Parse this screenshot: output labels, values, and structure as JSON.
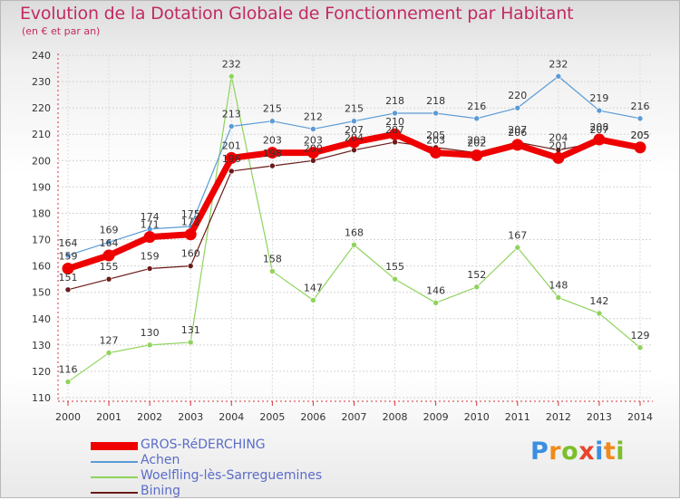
{
  "title": "Evolution de la Dotation Globale de Fonctionnement par Habitant",
  "subtitle": "(en € et par an)",
  "logo": {
    "letters": [
      {
        "ch": "P",
        "color": "#3b8ee0"
      },
      {
        "ch": "r",
        "color": "#f08a1a"
      },
      {
        "ch": "o",
        "color": "#7bbf2a"
      },
      {
        "ch": "x",
        "color": "#e8442c"
      },
      {
        "ch": "i",
        "color": "#3b8ee0"
      },
      {
        "ch": "t",
        "color": "#f08a1a"
      },
      {
        "ch": "i",
        "color": "#7bbf2a"
      }
    ]
  },
  "chart_data": {
    "type": "line",
    "title": "Evolution de la Dotation Globale de Fonctionnement par Habitant",
    "subtitle": "(en € et par an)",
    "xlabel": "",
    "ylabel": "",
    "ylim": [
      110,
      240
    ],
    "yticks": [
      110,
      120,
      130,
      140,
      150,
      160,
      170,
      180,
      190,
      200,
      210,
      220,
      230,
      240
    ],
    "grid": true,
    "legend_position": "bottom-left",
    "categories": [
      "2000",
      "2001",
      "2002",
      "2003",
      "2004",
      "2005",
      "2006",
      "2007",
      "2008",
      "2009",
      "2010",
      "2011",
      "2012",
      "2013",
      "2014"
    ],
    "series": [
      {
        "name": "GROS-RéDERCHING",
        "color": "#ee0000",
        "values": [
          159,
          164,
          171,
          172,
          201,
          203,
          203,
          207,
          210,
          203,
          202,
          206,
          201,
          208,
          205
        ],
        "labels": [
          "159",
          "164",
          "171",
          "172",
          "201",
          "203",
          "203",
          "207",
          "210",
          "203",
          "202",
          "206",
          "201",
          "208",
          "205"
        ]
      },
      {
        "name": "Achen",
        "color": "#5b9bd5",
        "values": [
          164,
          169,
          174,
          175,
          213,
          215,
          212,
          215,
          218,
          218,
          216,
          220,
          232,
          219,
          216
        ],
        "labels": [
          "164",
          "169",
          "174",
          "175",
          "213",
          "215",
          "212",
          "215",
          "218",
          "218",
          "216",
          "220",
          "232",
          "219",
          "216"
        ]
      },
      {
        "name": "Woelfling-lès-Sarreguemines",
        "color": "#8fd35c",
        "values": [
          116,
          127,
          130,
          131,
          232,
          158,
          147,
          168,
          155,
          146,
          152,
          167,
          148,
          142,
          129
        ],
        "labels": [
          "116",
          "127",
          "130",
          "131",
          "232",
          "158",
          "147",
          "168",
          "155",
          "146",
          "152",
          "167",
          "148",
          "142",
          "129"
        ]
      },
      {
        "name": "Bining",
        "color": "#6b1a1a",
        "values": [
          151,
          155,
          159,
          160,
          196,
          198,
          200,
          204,
          207,
          205,
          203,
          207,
          204,
          207,
          205
        ],
        "labels": [
          "151",
          "155",
          "159",
          "160",
          "196",
          "198",
          "200",
          "204",
          "207",
          "205",
          "203",
          "207",
          "204",
          "207",
          "205"
        ]
      }
    ]
  }
}
